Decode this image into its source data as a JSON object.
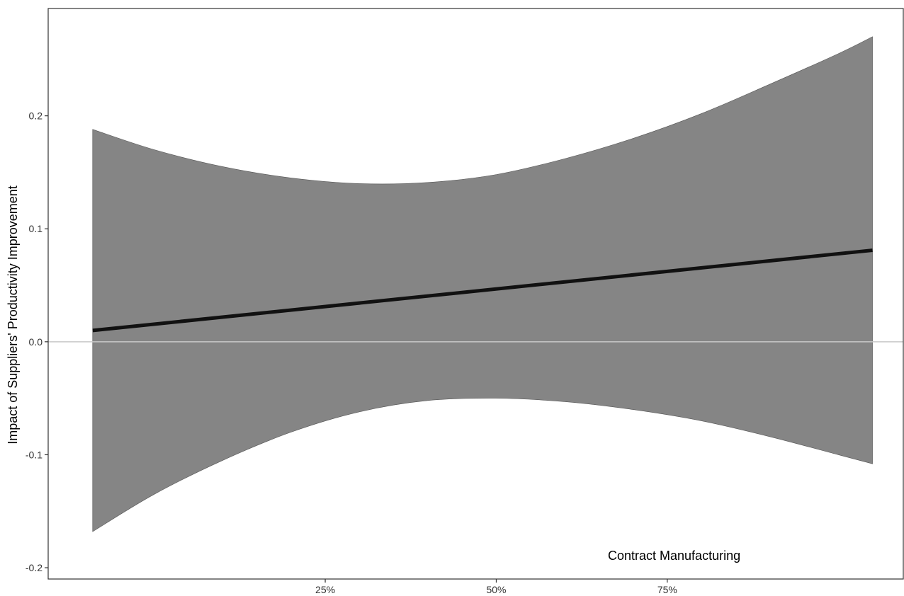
{
  "chart_data": {
    "type": "area",
    "ylabel": "Impact of Suppliers' Productivity Improvement",
    "xlabel": "",
    "annotation": "Contract Manufacturing",
    "xlim": [
      -0.155,
      1.095
    ],
    "ylim": [
      -0.21,
      0.295
    ],
    "x_ticks": [
      {
        "value": 0.25,
        "label": "25%"
      },
      {
        "value": 0.5,
        "label": "50%"
      },
      {
        "value": 0.75,
        "label": "75%"
      }
    ],
    "y_ticks": [
      {
        "value": -0.2,
        "label": "-0.2"
      },
      {
        "value": -0.1,
        "label": "-0.1"
      },
      {
        "value": 0.0,
        "label": "0.0"
      },
      {
        "value": 0.1,
        "label": "0.1"
      },
      {
        "value": 0.2,
        "label": "0.2"
      }
    ],
    "reference_line_y": 0,
    "grid": false,
    "series": [
      {
        "role": "estimate",
        "x": [
          -0.09,
          1.05
        ],
        "y": [
          0.01,
          0.081
        ]
      }
    ],
    "band": {
      "x": [
        -0.09,
        0.0,
        0.1,
        0.2,
        0.3,
        0.4,
        0.5,
        0.6,
        0.7,
        0.8,
        0.9,
        1.0,
        1.05
      ],
      "upper": [
        0.188,
        0.17,
        0.155,
        0.145,
        0.14,
        0.141,
        0.148,
        0.162,
        0.18,
        0.202,
        0.228,
        0.255,
        0.27
      ],
      "lower": [
        -0.168,
        -0.135,
        -0.105,
        -0.08,
        -0.062,
        -0.052,
        -0.05,
        -0.053,
        -0.06,
        -0.07,
        -0.084,
        -0.1,
        -0.108
      ]
    },
    "colors": {
      "band": "#858585",
      "line": "#111111",
      "reference": "#c8c8c8",
      "panel_border": "#333333"
    }
  }
}
